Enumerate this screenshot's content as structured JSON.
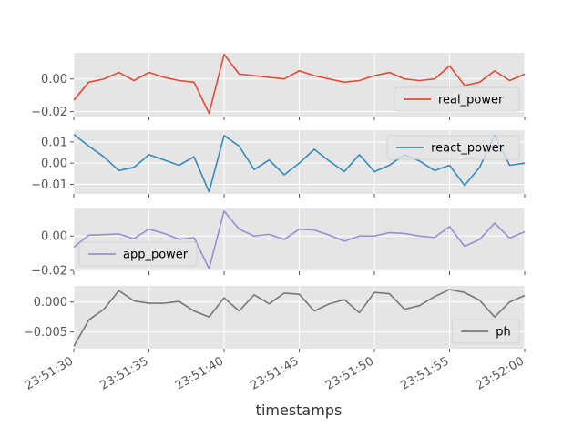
{
  "chart_data": {
    "type": "line",
    "xlabel": "timestamps",
    "x_ticks": [
      "23:51:30",
      "23:51:35",
      "23:51:40",
      "23:51:45",
      "23:51:50",
      "23:51:55",
      "23:52:00"
    ],
    "x_seconds": [
      0,
      1,
      2,
      3,
      4,
      5,
      6,
      7,
      8,
      9,
      10,
      11,
      12,
      13,
      14,
      15,
      16,
      17,
      18,
      19,
      20,
      21,
      22,
      23,
      24,
      25,
      26,
      27,
      28,
      29,
      30
    ],
    "grid": true,
    "panels": [
      {
        "series_name": "real_power",
        "color": "#E24A33",
        "legend_loc": "lower-right",
        "ylim": [
          -0.023,
          0.016
        ],
        "yticks": [
          -0.02,
          0.0
        ],
        "ytick_labels": [
          "−0.02",
          "0.00"
        ],
        "values": [
          -0.013,
          -0.002,
          0.0,
          0.004,
          -0.001,
          0.004,
          0.001,
          -0.001,
          -0.002,
          -0.021,
          0.015,
          0.003,
          0.002,
          0.001,
          0.0,
          0.005,
          0.002,
          0.0,
          -0.002,
          -0.001,
          0.002,
          0.004,
          0.0,
          -0.001,
          0.0,
          0.008,
          -0.004,
          -0.002,
          0.005,
          -0.001,
          0.003
        ]
      },
      {
        "series_name": "react_power",
        "color": "#348ABD",
        "legend_loc": "upper-right",
        "ylim": [
          -0.0145,
          0.0155
        ],
        "yticks": [
          -0.01,
          0.0,
          0.01
        ],
        "ytick_labels": [
          "−0.01",
          "0.00",
          "0.01"
        ],
        "values": [
          0.0135,
          0.008,
          0.003,
          -0.0035,
          -0.002,
          0.004,
          0.0015,
          -0.001,
          0.003,
          -0.0135,
          0.013,
          0.008,
          -0.003,
          0.0015,
          -0.0055,
          0.0,
          0.0065,
          0.001,
          -0.004,
          0.004,
          -0.004,
          -0.001,
          0.004,
          0.001,
          -0.0035,
          -0.001,
          -0.0105,
          -0.002,
          0.013,
          -0.001,
          0.0
        ]
      },
      {
        "series_name": "app_power",
        "color": "#988ED5",
        "legend_loc": "lower-left",
        "ylim": [
          -0.0205,
          0.016
        ],
        "yticks": [
          -0.02,
          0.0
        ],
        "ytick_labels": [
          "−0.02",
          "0.00"
        ],
        "values": [
          -0.0065,
          0.0005,
          0.0008,
          0.0012,
          -0.0015,
          0.004,
          0.0015,
          -0.0018,
          -0.001,
          -0.019,
          0.0145,
          0.004,
          0.0,
          0.001,
          -0.002,
          0.004,
          0.0035,
          0.0005,
          -0.003,
          0.0,
          0.0,
          0.002,
          0.0015,
          0.0,
          -0.0008,
          0.0055,
          -0.006,
          -0.002,
          0.0075,
          -0.0012,
          0.0025
        ]
      },
      {
        "series_name": "ph",
        "color": "#777777",
        "legend_loc": "lower-right",
        "ylim": [
          -0.0078,
          0.0027
        ],
        "yticks": [
          -0.005,
          0.0
        ],
        "ytick_labels": [
          "−0.005",
          "0.000"
        ],
        "values": [
          -0.0074,
          -0.003,
          -0.0012,
          0.0019,
          0.0002,
          -0.0002,
          -0.0002,
          0.0001,
          -0.0015,
          -0.0025,
          0.0007,
          -0.0015,
          0.0012,
          -0.0003,
          0.0015,
          0.0013,
          -0.0015,
          -0.0003,
          0.0004,
          -0.0018,
          0.0016,
          0.0014,
          -0.0012,
          -0.0006,
          0.0009,
          0.0021,
          0.0016,
          0.0003,
          -0.0025,
          0.0,
          0.0011
        ]
      }
    ]
  }
}
